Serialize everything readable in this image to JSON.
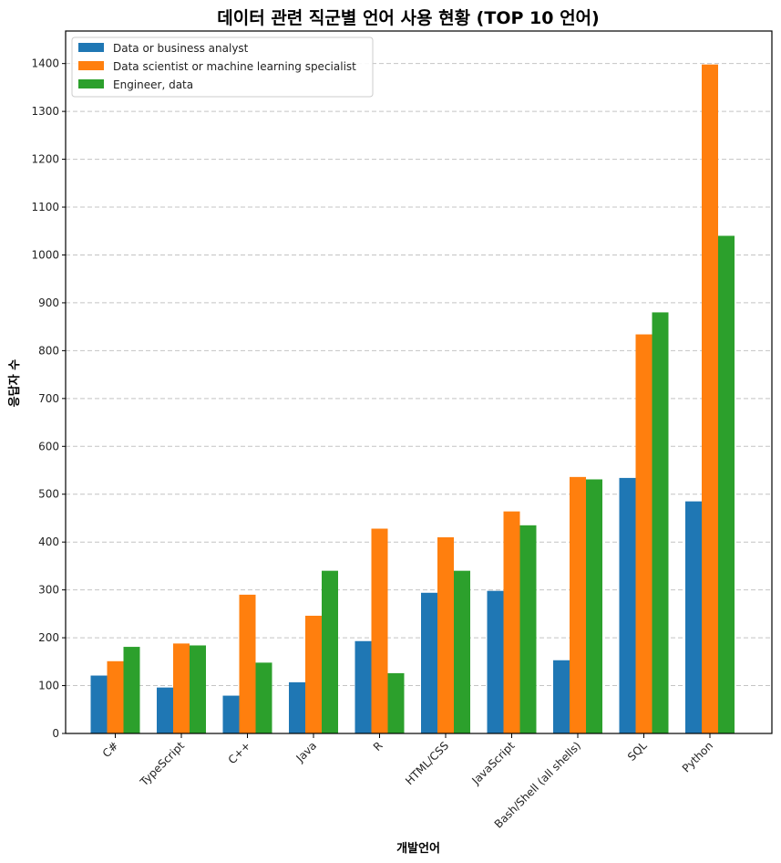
{
  "chart_data": {
    "type": "bar",
    "title": "데이터 관련 직군별 언어 사용 현황 (TOP 10 언어)",
    "xlabel": "개발언어",
    "ylabel": "응답자 수",
    "categories": [
      "C#",
      "TypeScript",
      "C++",
      "Java",
      "R",
      "HTML/CSS",
      "JavaScript",
      "Bash/Shell (all shells)",
      "SQL",
      "Python"
    ],
    "series": [
      {
        "name": "Data or business analyst",
        "color": "#1f77b4",
        "values": [
          121,
          96,
          79,
          107,
          193,
          294,
          298,
          153,
          534,
          485
        ]
      },
      {
        "name": "Data scientist or machine learning specialist",
        "color": "#ff7f0e",
        "values": [
          151,
          188,
          290,
          246,
          428,
          410,
          464,
          536,
          834,
          1398
        ]
      },
      {
        "name": "Engineer, data",
        "color": "#2ca02c",
        "values": [
          181,
          184,
          148,
          340,
          126,
          340,
          435,
          531,
          880,
          1040
        ]
      }
    ],
    "ylim": [
      0,
      1468
    ],
    "yticks": [
      0,
      100,
      200,
      300,
      400,
      500,
      600,
      700,
      800,
      900,
      1000,
      1100,
      1200,
      1300,
      1400
    ],
    "grid": "y-dashed",
    "legend_position": "top-left",
    "xtick_rotation": 45
  }
}
